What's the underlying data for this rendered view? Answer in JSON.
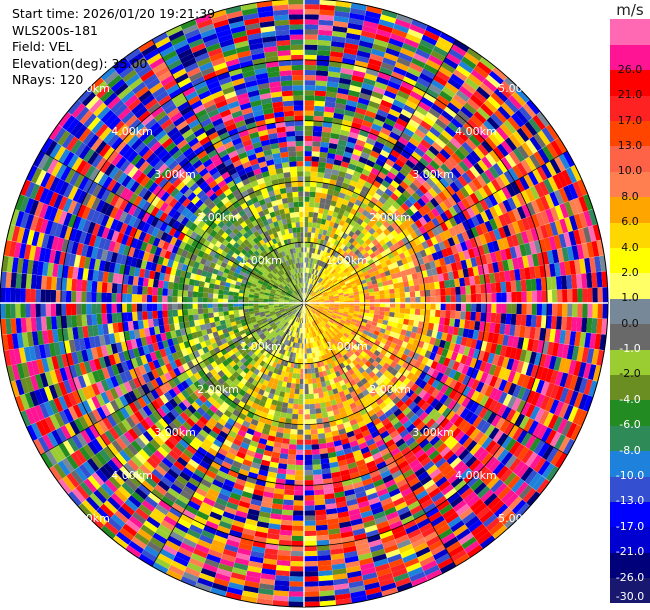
{
  "chart_data": {
    "type": "ppi-polar-heatmap",
    "title_lines": [
      "Start time: 2026/01/20 19:21:39",
      "WLS200s-181",
      "Field: VEL",
      "Elevation(deg): 35.00",
      "NRays: 120"
    ],
    "field": "VEL",
    "n_rays": 120,
    "elevation_deg": 35.0,
    "range_rings_km": [
      1.0,
      2.0,
      3.0,
      4.0,
      5.0
    ],
    "range_ring_label": "{r}km",
    "max_range_km": 5.0,
    "colorbar": {
      "unit": "m/s",
      "levels": [
        -30.0,
        -26.0,
        -21.0,
        -17.0,
        -13.0,
        -10.0,
        -8.0,
        -6.0,
        -4.0,
        -2.0,
        -1.0,
        0.0,
        1.0,
        2.0,
        4.0,
        6.0,
        8.0,
        10.0,
        13.0,
        17.0,
        21.0,
        26.0
      ],
      "tick_labels": [
        "-30.0",
        "-26.0",
        "-21.0",
        "-17.0",
        "-13.0",
        "-10.0",
        "-8.0",
        "-6.0",
        "-4.0",
        "-2.0",
        "-1.0",
        "0.0",
        "1.0",
        "2.0",
        "4.0",
        "6.0",
        "8.0",
        "10.0",
        "13.0",
        "17.0",
        "21.0",
        "26.0"
      ],
      "colors": [
        "#181870",
        "#00007a",
        "#0000d0",
        "#0000ff",
        "#3450d0",
        "#1e82dc",
        "#2e8b57",
        "#228b22",
        "#6b8e23",
        "#9acd32",
        "#696969",
        "#778899",
        "#ffff66",
        "#ffff00",
        "#ffd700",
        "#ffa500",
        "#ff7f50",
        "#ff6347",
        "#ff4500",
        "#ff2222",
        "#ff0000",
        "#ff1493",
        "#ff69b4"
      ]
    }
  }
}
